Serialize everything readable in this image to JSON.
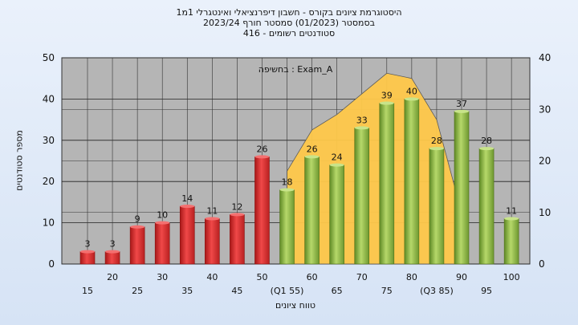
{
  "title_lines": [
    "היסטוגרמת ציונים בקורס - חשבון דיפרנציאלי ואינטגרלי 1מ1",
    "בסמסטר (01/2023) סמסטר חורף 2023/24",
    "סטודנטים רשומים - 416"
  ],
  "chart_data": {
    "type": "bar",
    "xlabel": "טווח ציונים",
    "ylabel": "מספר סטודנטים",
    "ylim": [
      0,
      50
    ],
    "y2lim": [
      0,
      40
    ],
    "y_ticks": [
      0,
      10,
      20,
      30,
      40,
      50
    ],
    "y2_ticks": [
      0,
      10,
      20,
      30,
      40
    ],
    "grid": true,
    "annotation": "בחשיפה : Exam_A",
    "categories": [
      "15",
      "20",
      "25",
      "30",
      "35",
      "40",
      "45",
      "50",
      "(Q1 55)",
      "60",
      "65",
      "70",
      "75",
      "80",
      "(Q3 85)",
      "90",
      "95",
      "100"
    ],
    "values": [
      3,
      3,
      9,
      10,
      14,
      11,
      12,
      26,
      18,
      26,
      24,
      33,
      39,
      40,
      28,
      37,
      28,
      11
    ],
    "bar_colors": [
      "red",
      "red",
      "red",
      "red",
      "red",
      "red",
      "red",
      "red",
      "green",
      "green",
      "green",
      "green",
      "green",
      "green",
      "green",
      "green",
      "green",
      "green"
    ],
    "area": {
      "color": "#ffc94a",
      "points": [
        [
          8,
          18
        ],
        [
          9,
          26
        ],
        [
          10,
          29
        ],
        [
          11,
          33
        ],
        [
          12,
          37
        ],
        [
          13,
          36
        ],
        [
          14,
          28
        ],
        [
          15,
          10
        ]
      ]
    },
    "colors": {
      "red": "#e03030",
      "green": "#8db84a",
      "plot_bg": "#b5b5b5"
    }
  }
}
